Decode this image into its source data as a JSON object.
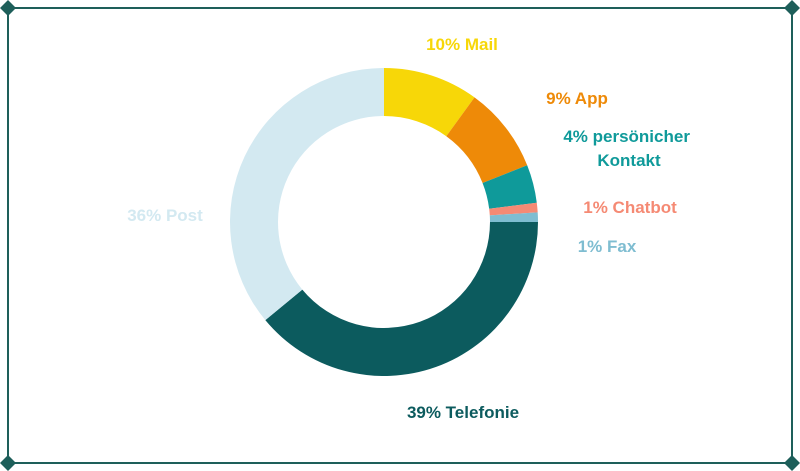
{
  "chart_data": {
    "type": "pie",
    "style": "donut",
    "title": "",
    "slices": [
      {
        "label": "Mail",
        "value": 10,
        "display": "10% Mail",
        "color": "#F7D708"
      },
      {
        "label": "App",
        "value": 9,
        "display": "9% App",
        "color": "#EE8A08"
      },
      {
        "label": "persönicher Kontakt",
        "value": 4,
        "display_lines": [
          "4% persönicher",
          "Kontakt"
        ],
        "color": "#0F9A9A"
      },
      {
        "label": "Chatbot",
        "value": 1,
        "display": "1% Chatbot",
        "color": "#F58A74"
      },
      {
        "label": "Fax",
        "value": 1,
        "display": "1% Fax",
        "color": "#7FBDD1"
      },
      {
        "label": "Telefonie",
        "value": 39,
        "display": "39% Telefonie",
        "color": "#0C5B5E"
      },
      {
        "label": "Post",
        "value": 36,
        "display": "36% Post",
        "color": "#D3E9F1"
      }
    ]
  },
  "colors": {
    "frame": "#1E5F5A"
  }
}
